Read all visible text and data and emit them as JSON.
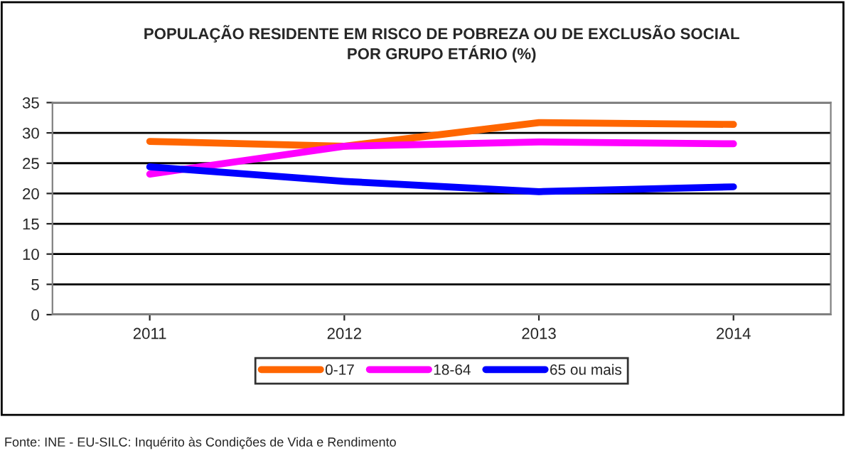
{
  "chart_data": {
    "type": "line",
    "title": "POPULAÇÃO RESIDENTE EM RISCO DE POBREZA OU DE EXCLUSÃO SOCIAL\nPOR GRUPO ETÁRIO (%)",
    "categories": [
      "2011",
      "2012",
      "2013",
      "2014"
    ],
    "series": [
      {
        "name": "0-17",
        "color": "#ff6600",
        "values": [
          28.6,
          27.8,
          31.7,
          31.4
        ]
      },
      {
        "name": "18-64",
        "color": "#ff00ff",
        "values": [
          23.2,
          27.8,
          28.5,
          28.2
        ]
      },
      {
        "name": "65 ou mais",
        "color": "#0000ff",
        "values": [
          24.4,
          22.0,
          20.3,
          21.1
        ]
      }
    ],
    "ylim": [
      0,
      35
    ],
    "yticks": [
      0,
      5,
      10,
      15,
      20,
      25,
      30,
      35
    ],
    "grid": "y",
    "legend": "bottom",
    "annotations": [
      "Fonte: INE - EU-SILC: Inquérito às Condições de Vida e Rendimento"
    ]
  }
}
